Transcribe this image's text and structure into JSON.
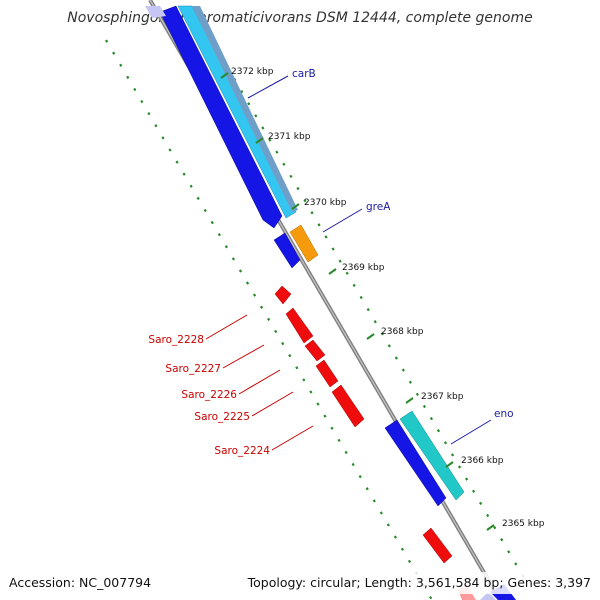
{
  "title": "Novosphingobium aromaticivorans DSM 12444, complete genome",
  "accession": "Accession: NC_007794",
  "topology": "Topology: circular; Length: 3,561,584 bp; Genes: 3,397",
  "ticks": [
    {
      "kbp": 2372,
      "label": "2372 kbp"
    },
    {
      "kbp": 2371,
      "label": "2371 kbp"
    },
    {
      "kbp": 2370,
      "label": "2370 kbp"
    },
    {
      "kbp": 2369,
      "label": "2369 kbp"
    },
    {
      "kbp": 2368,
      "label": "2368 kbp"
    },
    {
      "kbp": 2367,
      "label": "2367 kbp"
    },
    {
      "kbp": 2366,
      "label": "2366 kbp"
    },
    {
      "kbp": 2365,
      "label": "2365 kbp"
    }
  ],
  "forward_labels": [
    "carB",
    "greA",
    "eno"
  ],
  "reverse_labels": [
    "Saro_2228",
    "Saro_2227",
    "Saro_2226",
    "Saro_2225",
    "Saro_2224"
  ],
  "colors": {
    "backbone": "#8a8a8a",
    "blue_gene": "#1515e6",
    "light_blue_gene": "#33c6f0",
    "cyan_gene": "#22c8c8",
    "orange_gene": "#f59a0c",
    "red_gene": "#ee0c0c",
    "tick_dots": "#2a8a2a",
    "forward_label": "#1a1aa6",
    "reverse_label": "#cc0000"
  }
}
